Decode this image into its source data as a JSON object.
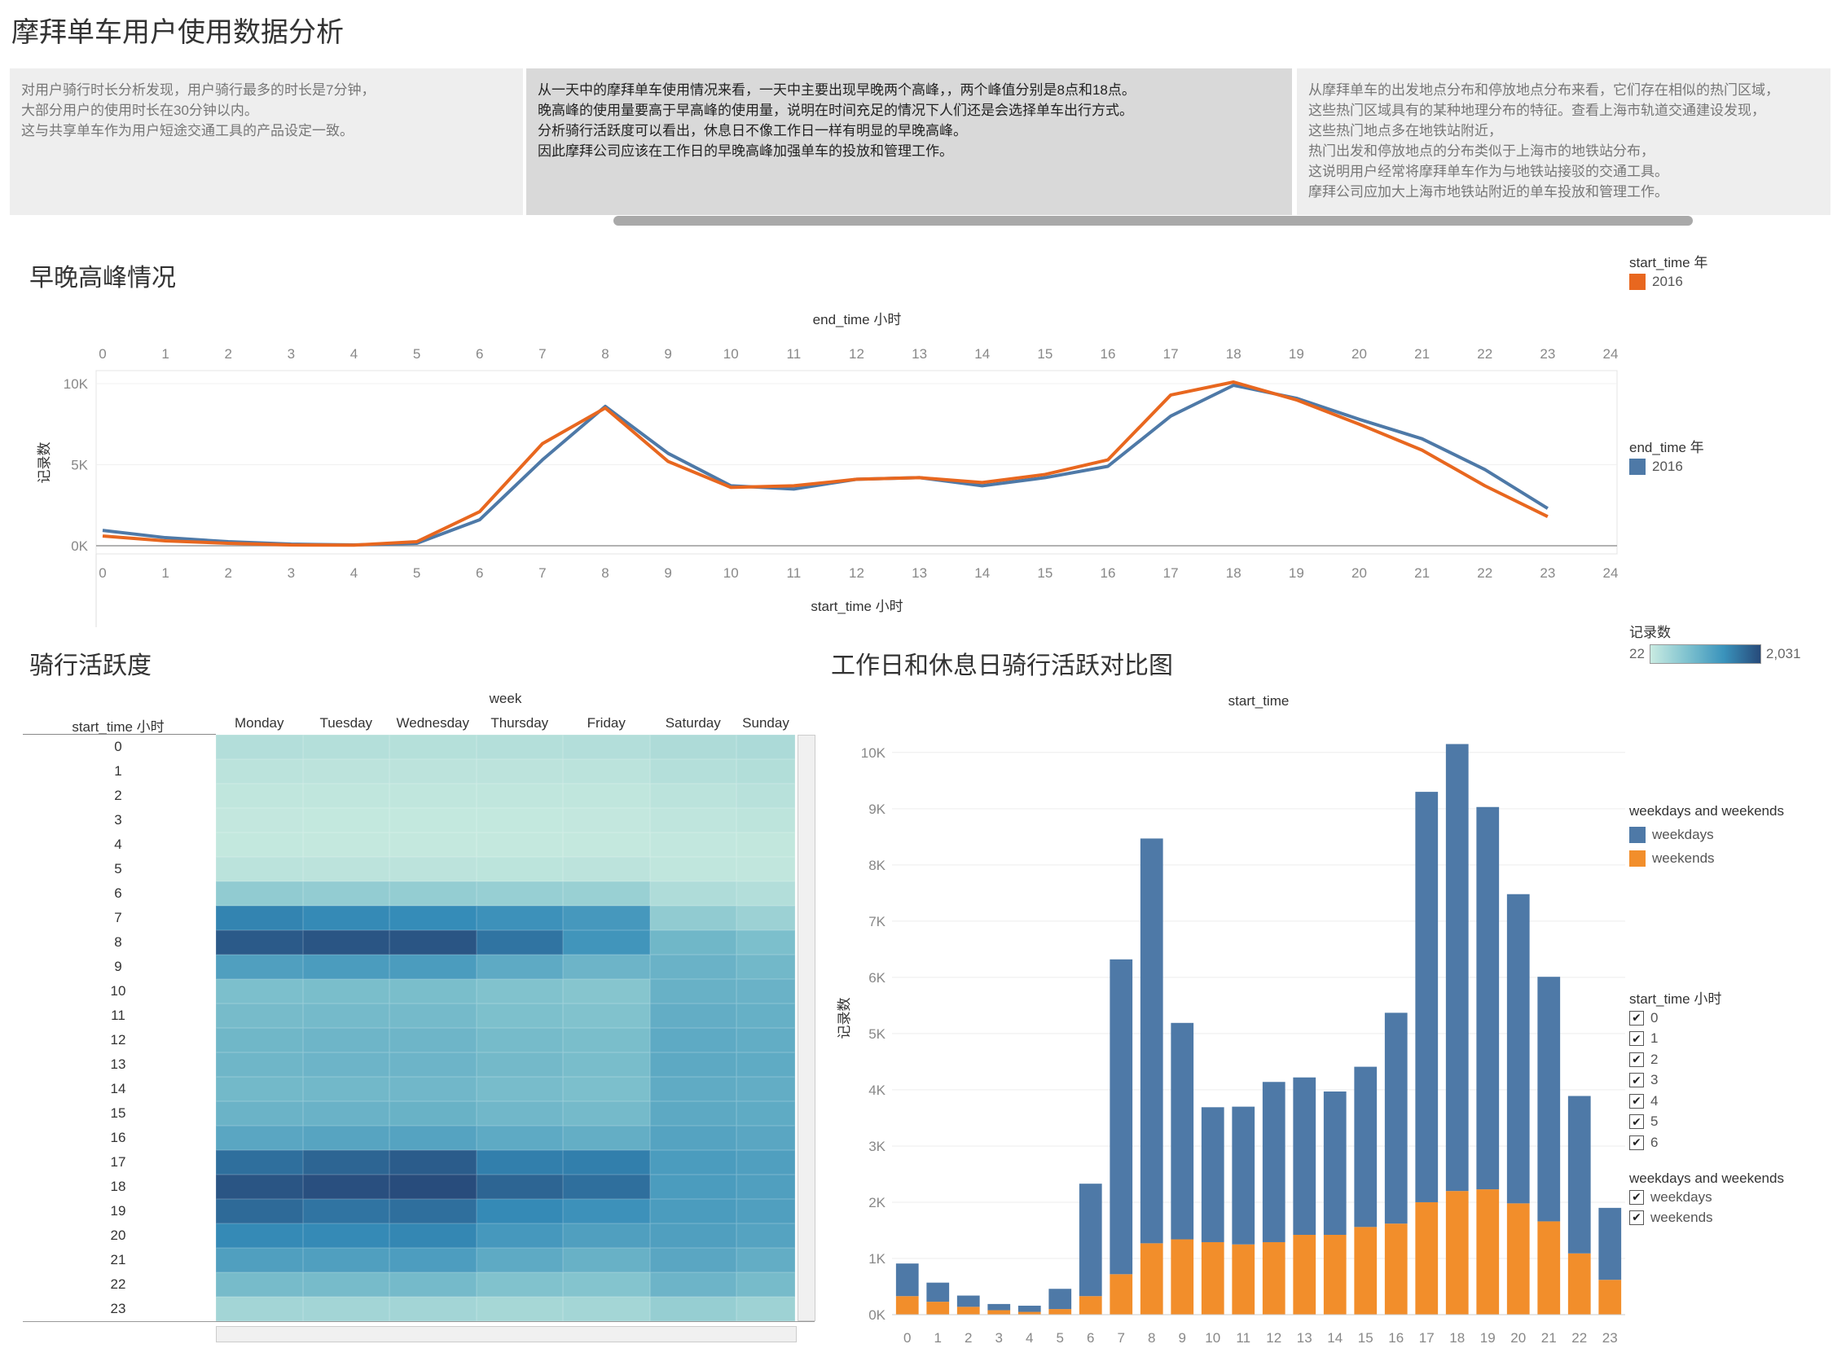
{
  "title": "摩拜单车用户使用数据分析",
  "panels": [
    [
      "对用户骑行时长分析发现，用户骑行最多的时长是7分钟，",
      "大部分用户的使用时长在30分钟以内。",
      "这与共享单车作为用户短途交通工具的产品设定一致。"
    ],
    [
      "从一天中的摩拜单车使用情况来看，一天中主要出现早晚两个高峰，，两个峰值分别是8点和18点。",
      "晚高峰的使用量要高于早高峰的使用量，说明在时间充足的情况下人们还是会选择单车出行方式。",
      "分析骑行活跃度可以看出，休息日不像工作日一样有明显的早晚高峰。",
      "因此摩拜公司应该在工作日的早晚高峰加强单车的投放和管理工作。"
    ],
    [
      "从摩拜单车的出发地点分布和停放地点分布来看，它们存在相似的热门区域，",
      "这些热门区域具有的某种地理分布的特征。查看上海市轨道交通建设发现，",
      "这些热门地点多在地铁站附近，",
      "热门出发和停放地点的分布类似于上海市的地铁站分布，",
      "这说明用户经常将摩拜单车作为与地铁站接驳的交通工具。",
      "摩拜公司应加大上海市地铁站附近的单车投放和管理工作。"
    ]
  ],
  "sections": {
    "peak": "早晚高峰情况",
    "activity": "骑行活跃度",
    "compare": "工作日和休息日骑行活跃对比图"
  },
  "legends": {
    "start_year_title": "start_time 年",
    "start_year_item": "2016",
    "end_year_title": "end_time 年",
    "end_year_item": "2016",
    "count_title": "记录数",
    "count_min": "22",
    "count_max": "2,031",
    "wk_title": "weekdays and weekends",
    "wk_items": [
      "weekdays",
      "weekends"
    ],
    "filter_hour_title": "start_time 小时",
    "filter_hours": [
      "0",
      "1",
      "2",
      "3",
      "4",
      "5",
      "6"
    ],
    "filter_wk_title": "weekdays and weekends",
    "filter_wk_items": [
      "weekdays",
      "weekends"
    ]
  },
  "colors": {
    "blue": "#4e79a7",
    "orange": "#f28e2b",
    "line_orange": "#e8671f",
    "panel_light": "#eeeeee",
    "panel_dark": "#d9d9d9"
  },
  "chart_data": [
    {
      "type": "line",
      "x_top_label": "end_time 小时",
      "x_bottom_label": "start_time 小时",
      "ylabel": "记录数",
      "x": [
        0,
        1,
        2,
        3,
        4,
        5,
        6,
        7,
        8,
        9,
        10,
        11,
        12,
        13,
        14,
        15,
        16,
        17,
        18,
        19,
        20,
        21,
        22,
        23
      ],
      "x_ticks": [
        "0",
        "1",
        "2",
        "3",
        "4",
        "5",
        "6",
        "7",
        "8",
        "9",
        "10",
        "11",
        "12",
        "13",
        "14",
        "15",
        "16",
        "17",
        "18",
        "19",
        "20",
        "21",
        "22",
        "23",
        "24"
      ],
      "y_ticks": [
        "10K",
        "5K",
        "0K"
      ],
      "ylim": [
        0,
        10000
      ],
      "series": [
        {
          "name": "start_time 2016",
          "values": [
            600,
            300,
            150,
            50,
            40,
            250,
            2100,
            6300,
            8500,
            5200,
            3600,
            3700,
            4100,
            4200,
            3900,
            4400,
            5300,
            9300,
            10100,
            9000,
            7500,
            5900,
            3700,
            1800
          ]
        },
        {
          "name": "end_time 2016",
          "values": [
            950,
            500,
            250,
            100,
            50,
            150,
            1600,
            5300,
            8600,
            5700,
            3700,
            3500,
            4100,
            4200,
            3700,
            4200,
            4900,
            8000,
            9900,
            9100,
            7800,
            6600,
            4700,
            2300
          ]
        }
      ]
    },
    {
      "type": "heatmap",
      "x_title": "week",
      "y_title": "start_time 小时",
      "columns": [
        "Monday",
        "Tuesday",
        "Wednesday",
        "Thursday",
        "Friday",
        "Saturday",
        "Sunday"
      ],
      "rows": [
        "0",
        "1",
        "2",
        "3",
        "4",
        "5",
        "6",
        "7",
        "8",
        "9",
        "10",
        "11",
        "12",
        "13",
        "14",
        "15",
        "16",
        "17",
        "18",
        "19",
        "20",
        "21",
        "22",
        "23"
      ],
      "color_range": [
        22,
        2031
      ],
      "values": [
        [
          180,
          170,
          160,
          170,
          180,
          230,
          250
        ],
        [
          110,
          100,
          100,
          100,
          110,
          170,
          190
        ],
        [
          60,
          55,
          55,
          55,
          60,
          110,
          130
        ],
        [
          35,
          30,
          30,
          30,
          35,
          70,
          90
        ],
        [
          28,
          25,
          24,
          25,
          26,
          40,
          45
        ],
        [
          110,
          100,
          100,
          95,
          100,
          60,
          50
        ],
        [
          500,
          480,
          470,
          440,
          420,
          220,
          180
        ],
        [
          1500,
          1450,
          1430,
          1350,
          1250,
          500,
          400
        ],
        [
          1900,
          1950,
          1950,
          1650,
          1300,
          820,
          700
        ],
        [
          1150,
          1200,
          1200,
          1000,
          850,
          880,
          800
        ],
        [
          700,
          720,
          720,
          650,
          600,
          900,
          880
        ],
        [
          750,
          770,
          770,
          690,
          650,
          950,
          920
        ],
        [
          820,
          840,
          840,
          760,
          720,
          1000,
          960
        ],
        [
          830,
          850,
          850,
          780,
          730,
          1020,
          990
        ],
        [
          790,
          800,
          810,
          740,
          700,
          980,
          950
        ],
        [
          870,
          880,
          890,
          810,
          770,
          1020,
          990
        ],
        [
          1050,
          1080,
          1100,
          1000,
          940,
          1100,
          1050
        ],
        [
          1700,
          1800,
          1880,
          1550,
          1550,
          1200,
          1150
        ],
        [
          1950,
          2000,
          2031,
          1800,
          1700,
          1200,
          1150
        ],
        [
          1750,
          1650,
          1700,
          1450,
          1350,
          1200,
          1150
        ],
        [
          1450,
          1450,
          1480,
          1250,
          1150,
          1150,
          1100
        ],
        [
          1150,
          1150,
          1180,
          1000,
          900,
          1050,
          950
        ],
        [
          750,
          750,
          770,
          650,
          620,
          850,
          750
        ],
        [
          330,
          330,
          330,
          300,
          320,
          450,
          380
        ]
      ]
    },
    {
      "type": "bar",
      "stacked": true,
      "x_title": "start_time",
      "ylabel": "记录数",
      "categories": [
        "0",
        "1",
        "2",
        "3",
        "4",
        "5",
        "6",
        "7",
        "8",
        "9",
        "10",
        "11",
        "12",
        "13",
        "14",
        "15",
        "16",
        "17",
        "18",
        "19",
        "20",
        "21",
        "22",
        "23"
      ],
      "y_ticks": [
        "10K",
        "9K",
        "8K",
        "7K",
        "6K",
        "5K",
        "4K",
        "3K",
        "2K",
        "1K",
        "0K"
      ],
      "ylim": [
        0,
        10200
      ],
      "series": [
        {
          "name": "weekdays",
          "values": [
            580,
            340,
            200,
            110,
            110,
            360,
            2000,
            5600,
            7200,
            3850,
            2400,
            2450,
            2850,
            2800,
            2550,
            2850,
            3750,
            7300,
            7950,
            6800,
            5500,
            4350,
            2800,
            1280
          ]
        },
        {
          "name": "weekends",
          "values": [
            330,
            230,
            140,
            80,
            50,
            100,
            330,
            720,
            1270,
            1340,
            1290,
            1250,
            1290,
            1420,
            1420,
            1560,
            1620,
            2000,
            2200,
            2230,
            1980,
            1660,
            1090,
            620
          ]
        }
      ]
    }
  ]
}
